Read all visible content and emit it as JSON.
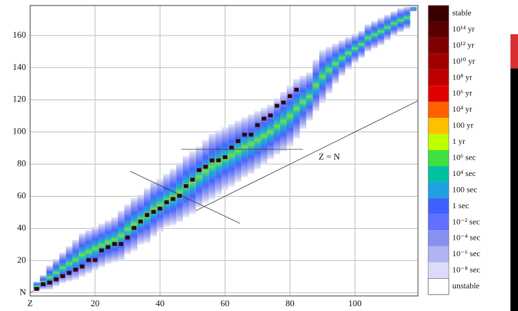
{
  "chart_data": {
    "type": "range",
    "annotation": "Z = N",
    "xlim": [
      0,
      119.4
    ],
    "ylim": [
      -2,
      178.7
    ],
    "xticks": [
      {
        "value": 0,
        "label": "Z"
      },
      20,
      40,
      60,
      80,
      100
    ],
    "yticks": [
      {
        "value": 0,
        "label": "N"
      },
      20,
      40,
      60,
      80,
      100,
      120,
      140,
      160
    ],
    "grid": true,
    "z": [
      2,
      4,
      6,
      8,
      10,
      12,
      14,
      16,
      18,
      20,
      22,
      24,
      26,
      28,
      30,
      32,
      34,
      36,
      38,
      40,
      42,
      44,
      46,
      48,
      50,
      52,
      54,
      56,
      58,
      60,
      62,
      64,
      66,
      68,
      70,
      72,
      74,
      76,
      78,
      80,
      82,
      84,
      86,
      88,
      90,
      92,
      94,
      96,
      98,
      100,
      102,
      104,
      106,
      108,
      110,
      112,
      114,
      116,
      118
    ],
    "n_min": [
      1,
      2,
      2,
      4,
      6,
      7,
      8,
      10,
      12,
      14,
      16,
      18,
      19,
      20,
      24,
      26,
      30,
      31,
      35,
      38,
      41,
      42,
      44,
      47,
      49,
      53,
      56,
      58,
      61,
      64,
      66,
      69,
      72,
      74,
      77,
      80,
      83,
      86,
      88,
      91,
      96,
      102,
      107,
      113,
      118,
      124,
      130,
      135,
      139,
      143,
      146,
      150,
      152,
      154,
      157,
      160,
      162,
      164,
      175
    ],
    "n_max": [
      6,
      10,
      16,
      20,
      24,
      28,
      32,
      36,
      38,
      40,
      42,
      44,
      46,
      50,
      54,
      58,
      60,
      64,
      68,
      70,
      73,
      76,
      80,
      84,
      87,
      90,
      94,
      98,
      100,
      102,
      104,
      106,
      108,
      110,
      112,
      114,
      116,
      120,
      124,
      128,
      132,
      134,
      136,
      144,
      150,
      152,
      154,
      156,
      158,
      160,
      162,
      166,
      168,
      170,
      172,
      174,
      176,
      177,
      177
    ],
    "n_stable": [
      2,
      5,
      6,
      8,
      10,
      12,
      14,
      16,
      20,
      20,
      26,
      28,
      30,
      30,
      34,
      40,
      44,
      48,
      50,
      52,
      56,
      58,
      60,
      66,
      70,
      76,
      78,
      82,
      82,
      84,
      90,
      94,
      98,
      98,
      104,
      108,
      110,
      116,
      118,
      122,
      126,
      null,
      null,
      null,
      null,
      null,
      null,
      null,
      null,
      null,
      null,
      null,
      null,
      null,
      null,
      null,
      null,
      null,
      null
    ],
    "legend": {
      "labels": [
        "stable",
        "10¹⁴ yr",
        "10¹² yr",
        "10¹⁰ yr",
        "10⁸ yr",
        "10⁶ yr",
        "10⁴ yr",
        "100 yr",
        "1 yr",
        "10⁶ sec",
        "10⁴ sec",
        "100 sec",
        "1 sec",
        "10⁻² sec",
        "10⁻⁴ sec",
        "10⁻⁶ sec",
        "10⁻⁸ sec",
        "unstable"
      ],
      "colors": [
        "#3a0000",
        "#5a0000",
        "#800000",
        "#a00000",
        "#c00000",
        "#e00000",
        "#ff6000",
        "#ffc000",
        "#c0ff00",
        "#40e040",
        "#00c0a0",
        "#20a0e0",
        "#4060ff",
        "#6070ff",
        "#8890f0",
        "#b0b4f0",
        "#dcdcf8",
        "#ffffff"
      ]
    }
  }
}
